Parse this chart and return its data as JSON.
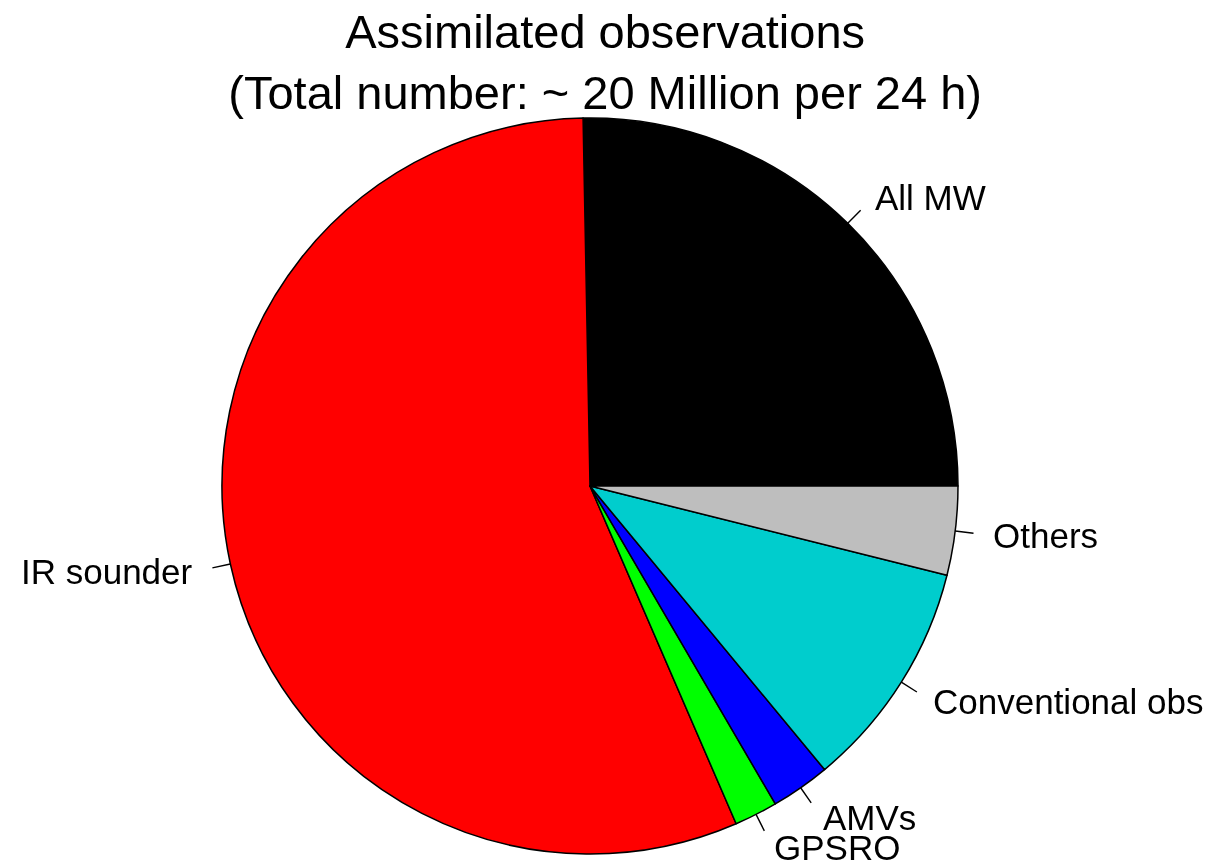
{
  "chart_data": {
    "type": "pie",
    "title": "Assimilated observations",
    "subtitle": "(Total number: ~ 20 Million per 24 h)",
    "categories": [
      "All MW",
      "IR sounder",
      "GPSRO",
      "AMVs",
      "Conventional obs",
      "Others"
    ],
    "values": [
      25.3,
      56.2,
      1.9,
      2.6,
      10.1,
      3.9
    ],
    "colors": [
      "#000000",
      "#ff0000",
      "#00ff00",
      "#0000ff",
      "#00cdcd",
      "#bebebe"
    ]
  }
}
